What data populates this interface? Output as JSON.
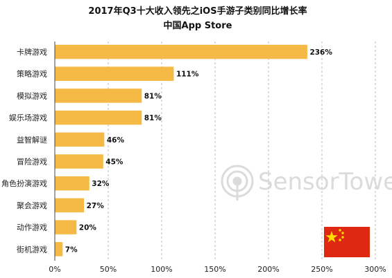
{
  "chart_data": {
    "type": "bar",
    "orientation": "horizontal",
    "title": "2017年Q3十大收入领先之iOS手游子类别同比增长率",
    "subtitle": "中国App Store",
    "categories": [
      "卡牌游戏",
      "策略游戏",
      "模拟游戏",
      "娱乐场游戏",
      "益智解谜",
      "冒险游戏",
      "角色扮演游戏",
      "聚会游戏",
      "动作游戏",
      "街机游戏"
    ],
    "values": [
      236,
      111,
      81,
      81,
      46,
      45,
      32,
      27,
      20,
      7
    ],
    "value_labels": [
      "236%",
      "111%",
      "81%",
      "81%",
      "46%",
      "45%",
      "32%",
      "27%",
      "20%",
      "7%"
    ],
    "xlim": [
      0,
      300
    ],
    "xticks": [
      0,
      50,
      100,
      150,
      200,
      250,
      300
    ],
    "xtick_labels": [
      "0%",
      "50%",
      "100%",
      "150%",
      "200%",
      "250%",
      "300%"
    ],
    "grid": "vertical-dashed",
    "bar_color": "#f5b945",
    "watermark": "SensorTower",
    "flag": "china-flag"
  }
}
